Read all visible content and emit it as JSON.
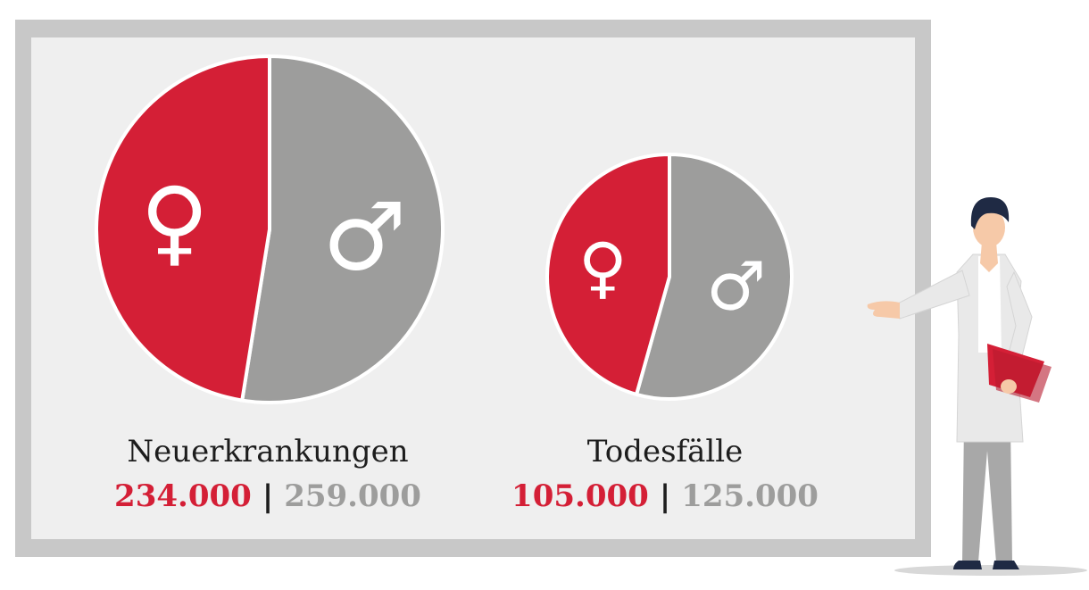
{
  "colors": {
    "female": "#d41f36",
    "male": "#9d9d9c",
    "text": "#1d1d1d",
    "symbol": "#ffffff"
  },
  "icons": [
    "female-symbol-icon",
    "male-symbol-icon"
  ],
  "chart_data": [
    {
      "type": "pie",
      "title": "Neuerkrankungen",
      "slices": [
        {
          "name": "female",
          "value": 234000,
          "label": "234.000",
          "color": "#d41f36",
          "symbol": "♀"
        },
        {
          "name": "male",
          "value": 259000,
          "label": "259.000",
          "color": "#9d9d9c",
          "symbol": "♂"
        }
      ],
      "separator": "|"
    },
    {
      "type": "pie",
      "title": "Todesfälle",
      "slices": [
        {
          "name": "female",
          "value": 105000,
          "label": "105.000",
          "color": "#d41f36",
          "symbol": "♀"
        },
        {
          "name": "male",
          "value": 125000,
          "label": "125.000",
          "color": "#9d9d9c",
          "symbol": "♂"
        }
      ],
      "separator": "|"
    }
  ]
}
